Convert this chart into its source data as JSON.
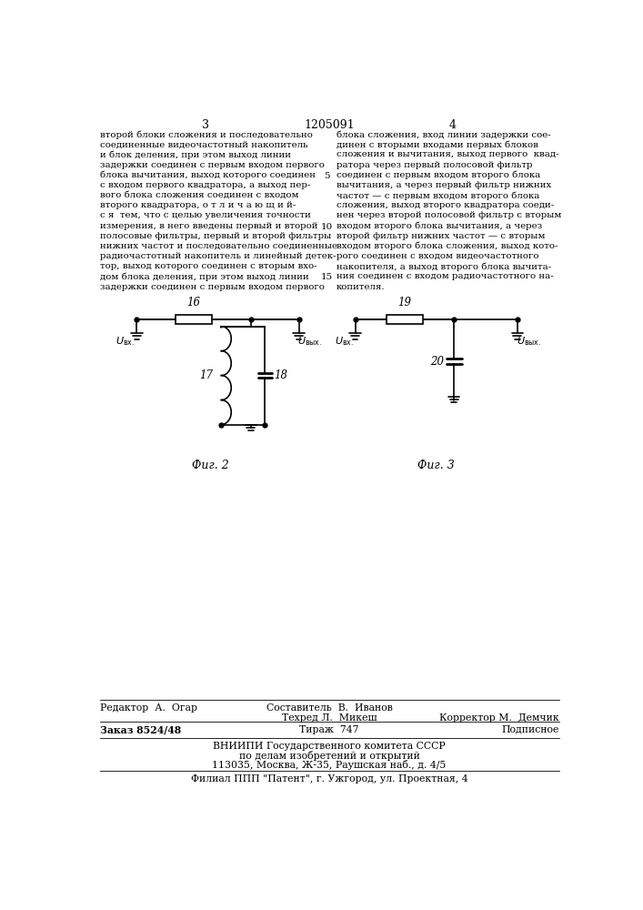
{
  "page_number_left": "3",
  "patent_number": "1205091",
  "page_number_right": "4",
  "text_left": "второй блоки сложения и последовательно\nсоединенные видеочастотный накопитель\nи блок деления, при этом выход линии\nзадержки соединен с первым входом первого\nблока вычитания, выход которого соединен\nс входом первого квадратора, а выход пер-\nвого блока сложения соединен с входом\nвторого квадратора, о т л и ч а ю щ и й-\nс я  тем, что с целью увеличения точности\nизмерения, в него введены первый и второй\nполосовые фильтры, первый и второй фильтры\nнижних частот и последовательно соединенные\nрадиочастотный накопитель и линейный детек-\nтор, выход которого соединен с вторым вхо-\nдом блока деления, при этом выход линии\nзадержки соединен с первым входом первого",
  "text_right": "блока сложения, вход линии задержки сое-\nдинен с вторыми входами первых блоков\nсложения и вычитания, выход первого  квад-\nратора через первый полосовой фильтр\nсоединен с первым входом второго блока\nвычитания, а через первый фильтр нижних\nчастот — с первым входом второго блока\nсложения, выход второго квадратора соеди-\nнен через второй полосовой фильтр с вторым\nвходом второго блока вычитания, а через\nвторой фильтр нижних частот — с вторым\nвходом второго блока сложения, выход кото-\nрого соединен с входом видеочастотного\nнакопителя, а выход второго блока вычита-\nния соединен с входом радиочастотного на-\nкопителя.",
  "line_numbers_rows": [
    4,
    9,
    14
  ],
  "fig2_caption": "Фиг. 2",
  "fig3_caption": "Фиг. 3",
  "footer_line1_left": "Редактор  А.  Огар",
  "footer_line1_center": "Составитель  В.  Иванов",
  "footer_line2_center": "Техред Л.  Микеш",
  "footer_line2_right": "Корректор М.  Демчик",
  "footer_box_left": "Заказ 8524/48",
  "footer_box_center": "Тираж  747",
  "footer_box_right": "Подписное",
  "footer_org1": "ВНИИПИ Государственного комитета СССР",
  "footer_org2": "по делам изобретений и открытий",
  "footer_org3": "113035, Москва, Ж-35, Раушская наб., д. 4/5",
  "footer_filial": "Филиал ППП \"Патент\", г. Ужгород, ул. Проектная, 4",
  "bg_color": "#ffffff",
  "text_color": "#000000"
}
